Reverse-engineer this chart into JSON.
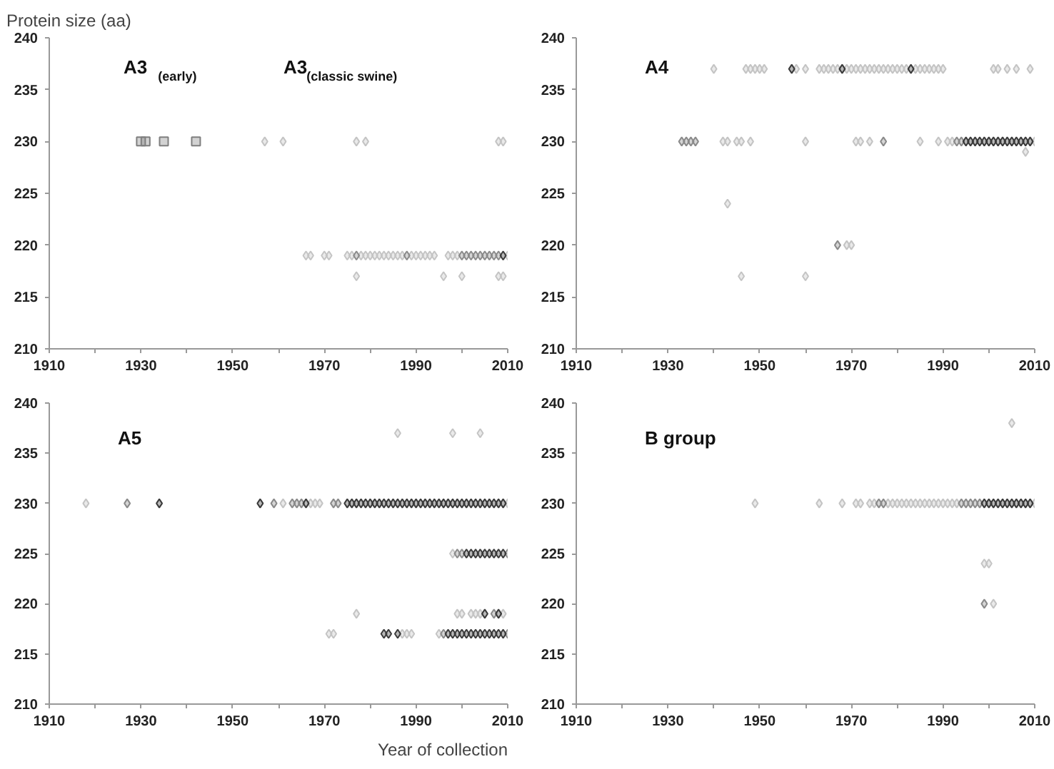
{
  "chart_data": [
    {
      "type": "scatter",
      "ylabel": "Protein size (aa)",
      "xlim": [
        1910,
        2010
      ],
      "ylim": [
        210,
        240
      ],
      "xticks": [
        1910,
        {
          "value": 1920,
          "label": null
        },
        1930,
        {
          "value": 1940,
          "label": null
        },
        1950,
        {
          "value": 1960,
          "label": null
        },
        1970,
        {
          "value": 1980,
          "label": null
        },
        1990,
        {
          "value": 2000,
          "label": null
        },
        2010
      ],
      "yticks": [
        210,
        215,
        220,
        225,
        230,
        235,
        240
      ],
      "grid": false,
      "marker": "diamond",
      "annotations": [
        "A3 $_{(early)}$",
        "A3$_{(classic swine)}$"
      ],
      "series": [
        {
          "color": "#7f7f7f",
          "marker": "square",
          "x": [
            1930,
            1931,
            1935,
            1942
          ],
          "values": [
            230,
            230,
            230,
            230
          ]
        },
        {
          "color": "#c4c4c4",
          "x": [
            1957,
            1961,
            1977,
            1979,
            2008,
            2009,
            1966,
            1967,
            1970,
            1971,
            1975,
            1976,
            1978,
            1979,
            1980,
            1981,
            1982,
            1983,
            1984,
            1985,
            1986,
            1987,
            1989,
            1990,
            1991,
            1992,
            1993,
            1994,
            1997,
            1998,
            1999,
            2010,
            1977,
            1996,
            2000,
            2008,
            2009
          ],
          "values": [
            230,
            230,
            230,
            230,
            230,
            230,
            219,
            219,
            219,
            219,
            219,
            219,
            219,
            219,
            219,
            219,
            219,
            219,
            219,
            219,
            219,
            219,
            219,
            219,
            219,
            219,
            219,
            219,
            219,
            219,
            219,
            219,
            217,
            217,
            217,
            217,
            217
          ]
        },
        {
          "color": "#8a8a8a",
          "x": [
            1977,
            1988,
            2000,
            2001,
            2002,
            2003,
            2004,
            2005,
            2006,
            2007,
            2008
          ],
          "values": [
            219,
            219,
            219,
            219,
            219,
            219,
            219,
            219,
            219,
            219,
            219
          ]
        },
        {
          "color": "#3a3a3a",
          "x": [
            2009
          ],
          "values": [
            219
          ]
        }
      ]
    },
    {
      "type": "scatter",
      "title": "A4",
      "xlim": [
        1910,
        2010
      ],
      "ylim": [
        210,
        240
      ],
      "xticks": [
        1910,
        {
          "value": 1920,
          "label": null
        },
        1930,
        {
          "value": 1940,
          "label": null
        },
        1950,
        {
          "value": 1960,
          "label": null
        },
        1970,
        {
          "value": 1980,
          "label": null
        },
        1990,
        {
          "value": 2000,
          "label": null
        },
        2010
      ],
      "yticks": [
        210,
        215,
        220,
        225,
        230,
        235,
        240
      ],
      "grid": false,
      "marker": "diamond",
      "series": [
        {
          "color": "#c4c4c4",
          "x": [
            1940,
            1947,
            1948,
            1949,
            1950,
            1951,
            1958,
            1960,
            1963,
            1964,
            1965,
            1966,
            1967,
            1969,
            1970,
            1971,
            1972,
            1973,
            1974,
            1975,
            1976,
            1977,
            1978,
            1979,
            1980,
            1981,
            1982,
            1984,
            1985,
            1986,
            1987,
            1988,
            1989,
            1990,
            2001,
            2002,
            2004,
            2006,
            2009,
            1942,
            1943,
            1945,
            1946,
            1948,
            1960,
            1971,
            1972,
            1974,
            1985,
            1989,
            1991,
            1992,
            2010,
            2008,
            1943,
            1969,
            1970,
            1946,
            1960
          ],
          "values": [
            237,
            237,
            237,
            237,
            237,
            237,
            237,
            237,
            237,
            237,
            237,
            237,
            237,
            237,
            237,
            237,
            237,
            237,
            237,
            237,
            237,
            237,
            237,
            237,
            237,
            237,
            237,
            237,
            237,
            237,
            237,
            237,
            237,
            237,
            237,
            237,
            237,
            237,
            237,
            230,
            230,
            230,
            230,
            230,
            230,
            230,
            230,
            230,
            230,
            230,
            230,
            230,
            230,
            229,
            224,
            220,
            220,
            217,
            217
          ]
        },
        {
          "color": "#8a8a8a",
          "x": [
            1933,
            1934,
            1935,
            1936,
            1977,
            1993,
            1994,
            1967
          ],
          "values": [
            230,
            230,
            230,
            230,
            230,
            230,
            230,
            220
          ]
        },
        {
          "color": "#3a3a3a",
          "x": [
            1957,
            1968,
            1983,
            1995,
            1996,
            1997,
            1998,
            1999,
            2000,
            2001,
            2002,
            2003,
            2004,
            2005,
            2006,
            2007,
            2008,
            2009
          ],
          "values": [
            237,
            237,
            237,
            230,
            230,
            230,
            230,
            230,
            230,
            230,
            230,
            230,
            230,
            230,
            230,
            230,
            230,
            230
          ]
        }
      ]
    },
    {
      "type": "scatter",
      "title": "A5",
      "xlabel": "Year of collection",
      "xlim": [
        1910,
        2010
      ],
      "ylim": [
        210,
        240
      ],
      "xticks": [
        1910,
        {
          "value": 1920,
          "label": null
        },
        1930,
        {
          "value": 1940,
          "label": null
        },
        1950,
        {
          "value": 1960,
          "label": null
        },
        1970,
        {
          "value": 1980,
          "label": null
        },
        1990,
        {
          "value": 2000,
          "label": null
        },
        2010
      ],
      "yticks": [
        210,
        215,
        220,
        225,
        230,
        235,
        240
      ],
      "grid": false,
      "marker": "diamond",
      "series": [
        {
          "color": "#c4c4c4",
          "x": [
            1986,
            1998,
            2004,
            1918,
            1961,
            1967,
            1968,
            1969,
            2010,
            1998,
            1977,
            1999,
            2000,
            2002,
            2003,
            2004,
            2009,
            1971,
            1972,
            1987,
            1988,
            1989,
            1995
          ],
          "values": [
            237,
            237,
            237,
            230,
            230,
            230,
            230,
            230,
            230,
            225,
            219,
            219,
            219,
            219,
            219,
            219,
            219,
            217,
            217,
            217,
            217,
            217,
            217
          ]
        },
        {
          "color": "#8a8a8a",
          "x": [
            1927,
            1959,
            1963,
            1964,
            1965,
            1972,
            1973,
            1999,
            2000,
            2010,
            2007,
            1996,
            2010
          ],
          "values": [
            230,
            230,
            230,
            230,
            230,
            230,
            230,
            225,
            225,
            225,
            219,
            217,
            217
          ]
        },
        {
          "color": "#3a3a3a",
          "x": [
            1934,
            1956,
            1966,
            1975,
            1976,
            1977,
            1978,
            1979,
            1980,
            1981,
            1982,
            1983,
            1984,
            1985,
            1986,
            1987,
            1988,
            1989,
            1990,
            1991,
            1992,
            1993,
            1994,
            1995,
            1996,
            1997,
            1998,
            1999,
            2000,
            2001,
            2002,
            2003,
            2004,
            2005,
            2006,
            2007,
            2008,
            2009,
            2001,
            2002,
            2003,
            2004,
            2005,
            2006,
            2007,
            2008,
            2009,
            2005,
            2008,
            1983,
            1984,
            1986,
            1997,
            1998,
            1999,
            2000,
            2001,
            2002,
            2003,
            2004,
            2005,
            2006,
            2007,
            2008,
            2009
          ],
          "values": [
            230,
            230,
            230,
            230,
            230,
            230,
            230,
            230,
            230,
            230,
            230,
            230,
            230,
            230,
            230,
            230,
            230,
            230,
            230,
            230,
            230,
            230,
            230,
            230,
            230,
            230,
            230,
            230,
            230,
            230,
            230,
            230,
            230,
            230,
            230,
            230,
            230,
            230,
            225,
            225,
            225,
            225,
            225,
            225,
            225,
            225,
            225,
            219,
            219,
            217,
            217,
            217,
            217,
            217,
            217,
            217,
            217,
            217,
            217,
            217,
            217,
            217,
            217,
            217,
            217
          ]
        }
      ]
    },
    {
      "type": "scatter",
      "title": "B group",
      "xlim": [
        1910,
        2010
      ],
      "ylim": [
        210,
        240
      ],
      "xticks": [
        1910,
        {
          "value": 1920,
          "label": null
        },
        1930,
        {
          "value": 1940,
          "label": null
        },
        1950,
        {
          "value": 1960,
          "label": null
        },
        1970,
        {
          "value": 1980,
          "label": null
        },
        1990,
        {
          "value": 2000,
          "label": null
        },
        2010
      ],
      "yticks": [
        210,
        215,
        220,
        225,
        230,
        235,
        240
      ],
      "grid": false,
      "marker": "diamond",
      "series": [
        {
          "color": "#c4c4c4",
          "x": [
            1949,
            1963,
            1968,
            1971,
            1972,
            1974,
            1975,
            1978,
            1979,
            1980,
            1981,
            1982,
            1983,
            1984,
            1985,
            1986,
            1987,
            1988,
            1989,
            1990,
            1991,
            1992,
            1993,
            2010,
            2005,
            1999,
            2000,
            2001
          ],
          "values": [
            230,
            230,
            230,
            230,
            230,
            230,
            230,
            230,
            230,
            230,
            230,
            230,
            230,
            230,
            230,
            230,
            230,
            230,
            230,
            230,
            230,
            230,
            230,
            230,
            238,
            224,
            224,
            220
          ]
        },
        {
          "color": "#8a8a8a",
          "x": [
            1976,
            1977,
            1994,
            1995,
            1996,
            1997,
            1998,
            1999
          ],
          "values": [
            230,
            230,
            230,
            230,
            230,
            230,
            230,
            220
          ]
        },
        {
          "color": "#3a3a3a",
          "x": [
            1999,
            2000,
            2001,
            2002,
            2003,
            2004,
            2005,
            2006,
            2007,
            2008,
            2009
          ],
          "values": [
            230,
            230,
            230,
            230,
            230,
            230,
            230,
            230,
            230,
            230,
            230
          ]
        }
      ]
    }
  ]
}
